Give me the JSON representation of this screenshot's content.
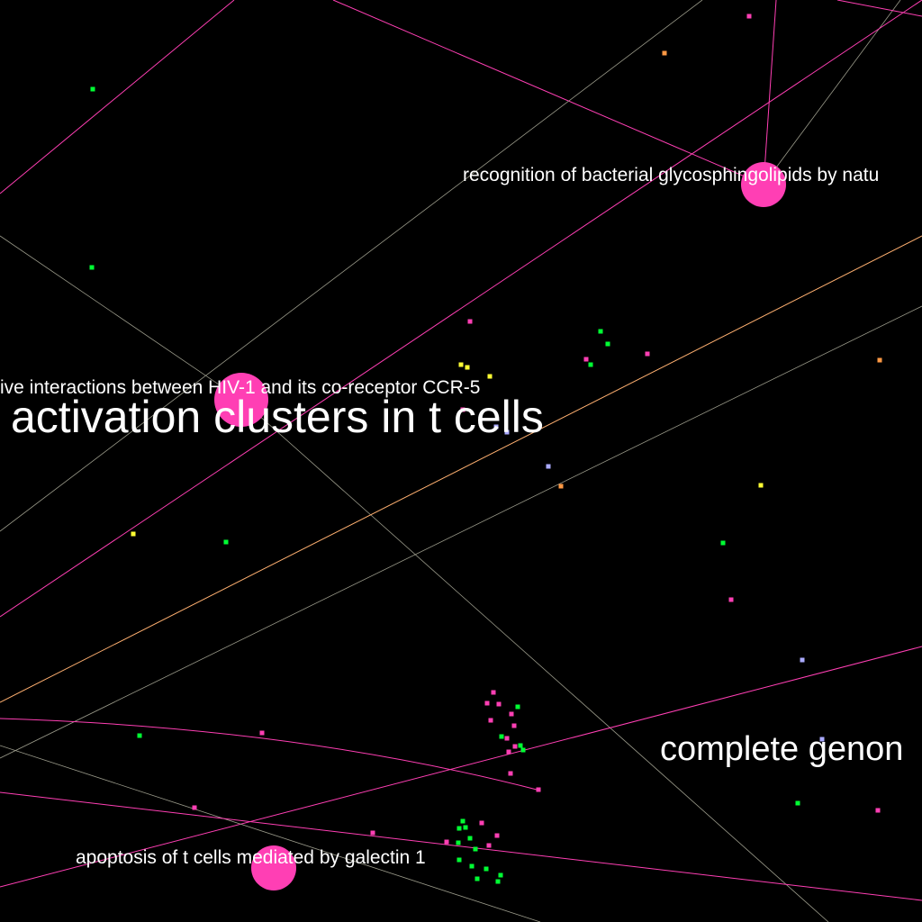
{
  "colors": {
    "background": "#000000",
    "hub": "#ff3fb4",
    "edge_pink": "#ff3fb4",
    "edge_grey": "#9a9a8a",
    "edge_orange": "#ffb070",
    "label": "#ffffff",
    "dot_green": "#00ff33",
    "dot_yellow": "#ffff33",
    "dot_orange": "#ff9944",
    "dot_lavender": "#aaaaff",
    "dot_pink": "#ff3fb4"
  },
  "labels": {
    "recognition": "recognition of bacterial glycosphingolipids by natu",
    "hiv_interactions": "ive interactions between HIV-1 and its co-receptor CCR-5",
    "activation_clusters": "activation clusters in t cells",
    "complete_genome": "complete genon",
    "apoptosis": "apoptosis of t cells mediated by galectin 1"
  }
}
